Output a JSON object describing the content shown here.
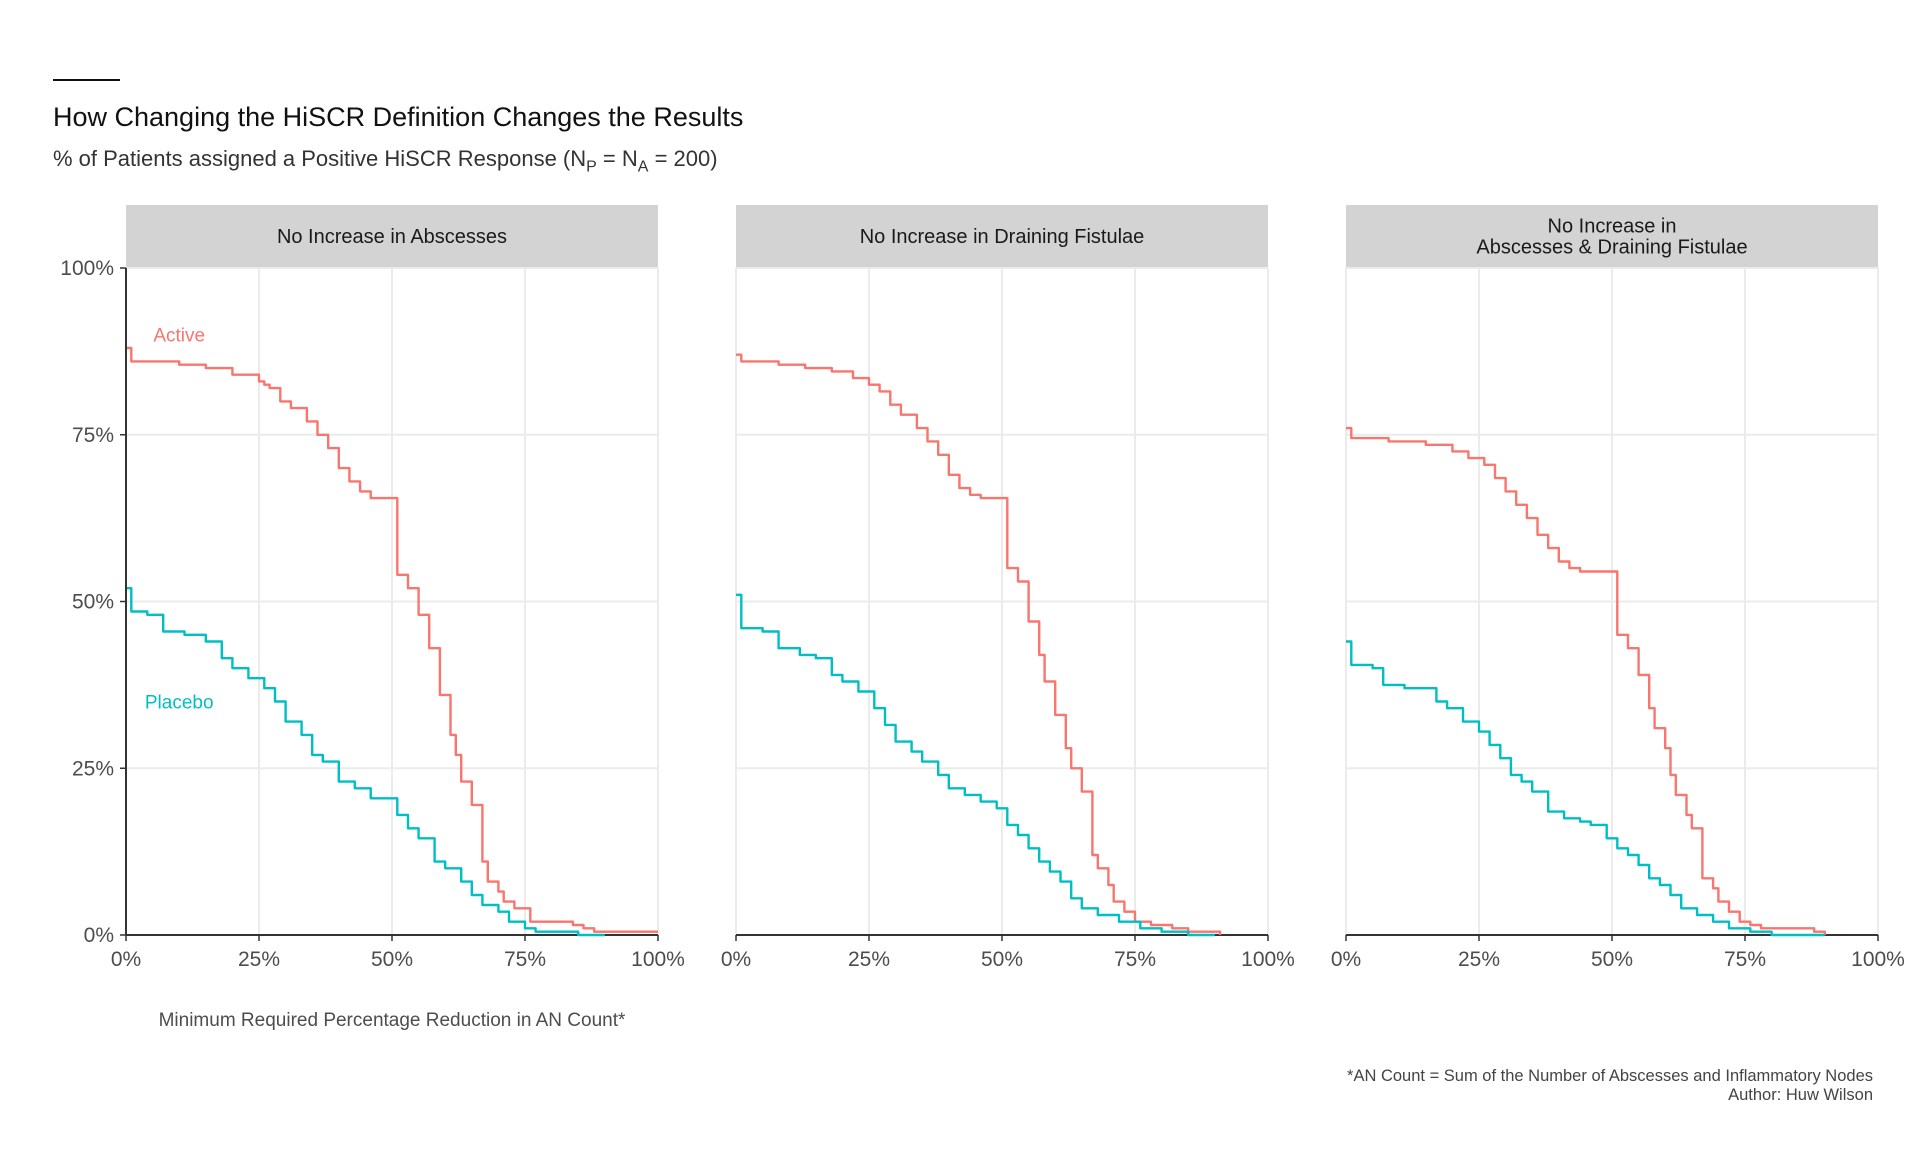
{
  "header": {
    "title": "How Changing the HiSCR Definition Changes the Results",
    "subtitle_prefix": "% of Patients assigned a Positive HiSCR Response (N",
    "subtitle_sub_p": "P",
    "subtitle_mid": " = N",
    "subtitle_sub_a": "A",
    "subtitle_suffix": " = 200)"
  },
  "caption": {
    "line1": "*AN Count = Sum of the Number of Abscesses and Inflammatory Nodes",
    "line2": "Author: Huw Wilson"
  },
  "colors": {
    "active": "#F8766D",
    "placebo": "#00BFC4",
    "strip": "#D3D3D3",
    "grid": "#EBEBEB",
    "axis": "#333333"
  },
  "chart_data": {
    "type": "line",
    "step": true,
    "xlabel": "Minimum Required Percentage Reduction in AN Count*",
    "ylabel": "",
    "xlim": [
      0,
      100
    ],
    "ylim": [
      0,
      100
    ],
    "x_ticks": [
      "0%",
      "25%",
      "50%",
      "75%",
      "100%"
    ],
    "y_ticks": [
      "0%",
      "25%",
      "50%",
      "75%",
      "100%"
    ],
    "grid": true,
    "series_labels": [
      {
        "series": "Active",
        "panel": 0,
        "x": 10,
        "y": 90
      },
      {
        "series": "Placebo",
        "panel": 0,
        "x": 10,
        "y": 35
      }
    ],
    "panels": [
      {
        "strip": [
          "No Increase in Abscesses"
        ],
        "series": [
          {
            "name": "Active",
            "x": [
              0,
              1,
              10,
              15,
              20,
              25,
              26,
              27,
              29,
              31,
              34,
              36,
              38,
              40,
              42,
              44,
              46,
              50,
              51,
              53,
              55,
              57,
              59,
              61,
              62,
              63,
              65,
              67,
              68,
              70,
              71,
              73,
              76,
              82,
              84,
              86,
              88,
              91,
              100
            ],
            "y": [
              88,
              86,
              85.5,
              85,
              84,
              83,
              82.5,
              82,
              80,
              79,
              77,
              75,
              73,
              70,
              68,
              66.5,
              65.5,
              65.5,
              54,
              52,
              48,
              43,
              36,
              30,
              27,
              23,
              19.5,
              11,
              8,
              6.5,
              5,
              4,
              2,
              2,
              1.5,
              1,
              0.5,
              0.5,
              0.5
            ]
          },
          {
            "name": "Placebo",
            "x": [
              0,
              1,
              4,
              7,
              11,
              15,
              18,
              20,
              23,
              26,
              28,
              30,
              33,
              35,
              37,
              40,
              43,
              46,
              49,
              51,
              53,
              55,
              56,
              58,
              60,
              63,
              65,
              67,
              70,
              72,
              75,
              77,
              80,
              85,
              90
            ],
            "y": [
              52,
              48.5,
              48,
              45.5,
              45,
              44,
              41.5,
              40,
              38.5,
              37,
              35,
              32,
              30,
              27,
              26,
              23,
              22,
              20.5,
              20.5,
              18,
              16,
              14.5,
              14.5,
              11,
              10,
              8,
              6,
              4.5,
              3.5,
              2,
              1,
              0.5,
              0.5,
              0,
              0
            ]
          }
        ]
      },
      {
        "strip": [
          "No Increase in Draining Fistulae"
        ],
        "series": [
          {
            "name": "Active",
            "x": [
              0,
              1,
              8,
              13,
              18,
              22,
              25,
              27,
              29,
              31,
              34,
              36,
              38,
              40,
              42,
              44,
              46,
              50,
              51,
              53,
              55,
              57,
              58,
              60,
              62,
              63,
              65,
              66,
              67,
              68,
              70,
              71,
              73,
              75,
              78,
              82,
              85,
              88,
              91
            ],
            "y": [
              87,
              86,
              85.5,
              85,
              84.5,
              83.5,
              82.5,
              81.5,
              79.5,
              78,
              76,
              74,
              72,
              69,
              67,
              66,
              65.5,
              65.5,
              55,
              53,
              47,
              42,
              38,
              33,
              28,
              25,
              21.5,
              21.5,
              12,
              10,
              7.5,
              5,
              3.5,
              2,
              1.5,
              1,
              0.5,
              0.5,
              0
            ]
          },
          {
            "name": "Placebo",
            "x": [
              0,
              1,
              5,
              8,
              12,
              15,
              18,
              20,
              23,
              26,
              28,
              30,
              33,
              35,
              38,
              40,
              43,
              46,
              49,
              51,
              53,
              55,
              57,
              59,
              61,
              63,
              65,
              68,
              72,
              76,
              80,
              85,
              90
            ],
            "y": [
              51,
              46,
              45.5,
              43,
              42,
              41.5,
              39,
              38,
              36.5,
              34,
              31.5,
              29,
              27.5,
              26,
              24,
              22,
              21,
              20,
              19,
              16.5,
              15,
              13,
              11,
              9.5,
              8,
              5.5,
              4,
              3,
              2,
              1,
              0.5,
              0,
              0
            ]
          }
        ]
      },
      {
        "strip": [
          "No Increase in",
          "Abscesses & Draining Fistulae"
        ],
        "series": [
          {
            "name": "Active",
            "x": [
              0,
              1,
              8,
              15,
              20,
              23,
              26,
              28,
              30,
              32,
              34,
              36,
              38,
              40,
              42,
              44,
              46,
              50,
              51,
              53,
              55,
              57,
              58,
              60,
              61,
              62,
              64,
              65,
              66,
              67,
              69,
              70,
              72,
              74,
              76,
              78,
              85,
              88,
              90
            ],
            "y": [
              76,
              74.5,
              74,
              73.5,
              72.5,
              71.5,
              70.5,
              68.5,
              66.5,
              64.5,
              62.5,
              60,
              58,
              56,
              55,
              54.5,
              54.5,
              54.5,
              45,
              43,
              39,
              34,
              31,
              28,
              24,
              21,
              18,
              16,
              16,
              8.5,
              7,
              5,
              3.5,
              2,
              1.5,
              1,
              1,
              0.5,
              0
            ]
          },
          {
            "name": "Placebo",
            "x": [
              0,
              1,
              5,
              7,
              11,
              15,
              17,
              19,
              22,
              25,
              27,
              29,
              31,
              33,
              35,
              38,
              41,
              44,
              46,
              49,
              51,
              53,
              55,
              57,
              59,
              61,
              63,
              66,
              69,
              72,
              76,
              80,
              85,
              90
            ],
            "y": [
              44,
              40.5,
              40,
              37.5,
              37,
              37,
              35,
              34,
              32,
              30.5,
              28.5,
              26.5,
              24,
              23,
              21.5,
              18.5,
              17.5,
              17,
              16.5,
              14.5,
              13,
              12,
              10.5,
              8.5,
              7.5,
              6,
              4,
              3,
              2,
              1,
              0.5,
              0,
              0,
              0
            ]
          }
        ]
      }
    ]
  }
}
